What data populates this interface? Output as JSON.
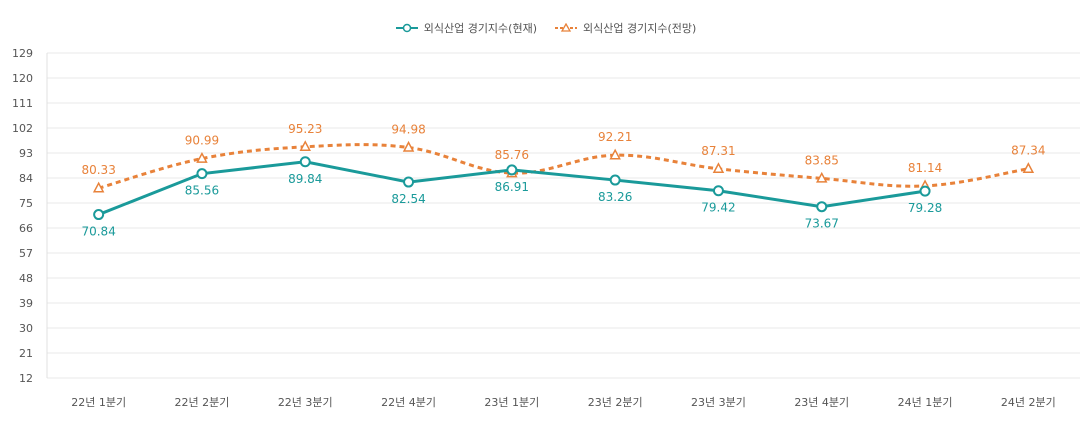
{
  "chart_data": {
    "type": "line",
    "categories": [
      "22년 1분기",
      "22년 2분기",
      "22년 3분기",
      "22년 4분기",
      "23년 1분기",
      "23년 2분기",
      "23년 3분기",
      "23년 4분기",
      "24년 1분기",
      "24년 2분기"
    ],
    "series": [
      {
        "name": "외식산업 경기지수(현재)",
        "values": [
          70.84,
          85.56,
          89.84,
          82.54,
          86.91,
          83.26,
          79.42,
          73.67,
          79.28,
          null
        ],
        "color": "#1a9a9a",
        "marker": "circle",
        "line_style": "solid"
      },
      {
        "name": "외식산업 경기지수(전망)",
        "values": [
          80.33,
          90.99,
          95.23,
          94.98,
          85.76,
          92.21,
          87.31,
          83.85,
          81.14,
          87.34
        ],
        "color": "#e8823a",
        "marker": "triangle",
        "line_style": "dashed"
      }
    ],
    "y_ticks": [
      12,
      21,
      30,
      39,
      48,
      57,
      66,
      75,
      84,
      93,
      102,
      111,
      120,
      129
    ],
    "ylim": [
      12,
      129
    ],
    "grid": true,
    "legend_position": "top-center",
    "title": "",
    "xlabel": "",
    "ylabel": ""
  }
}
